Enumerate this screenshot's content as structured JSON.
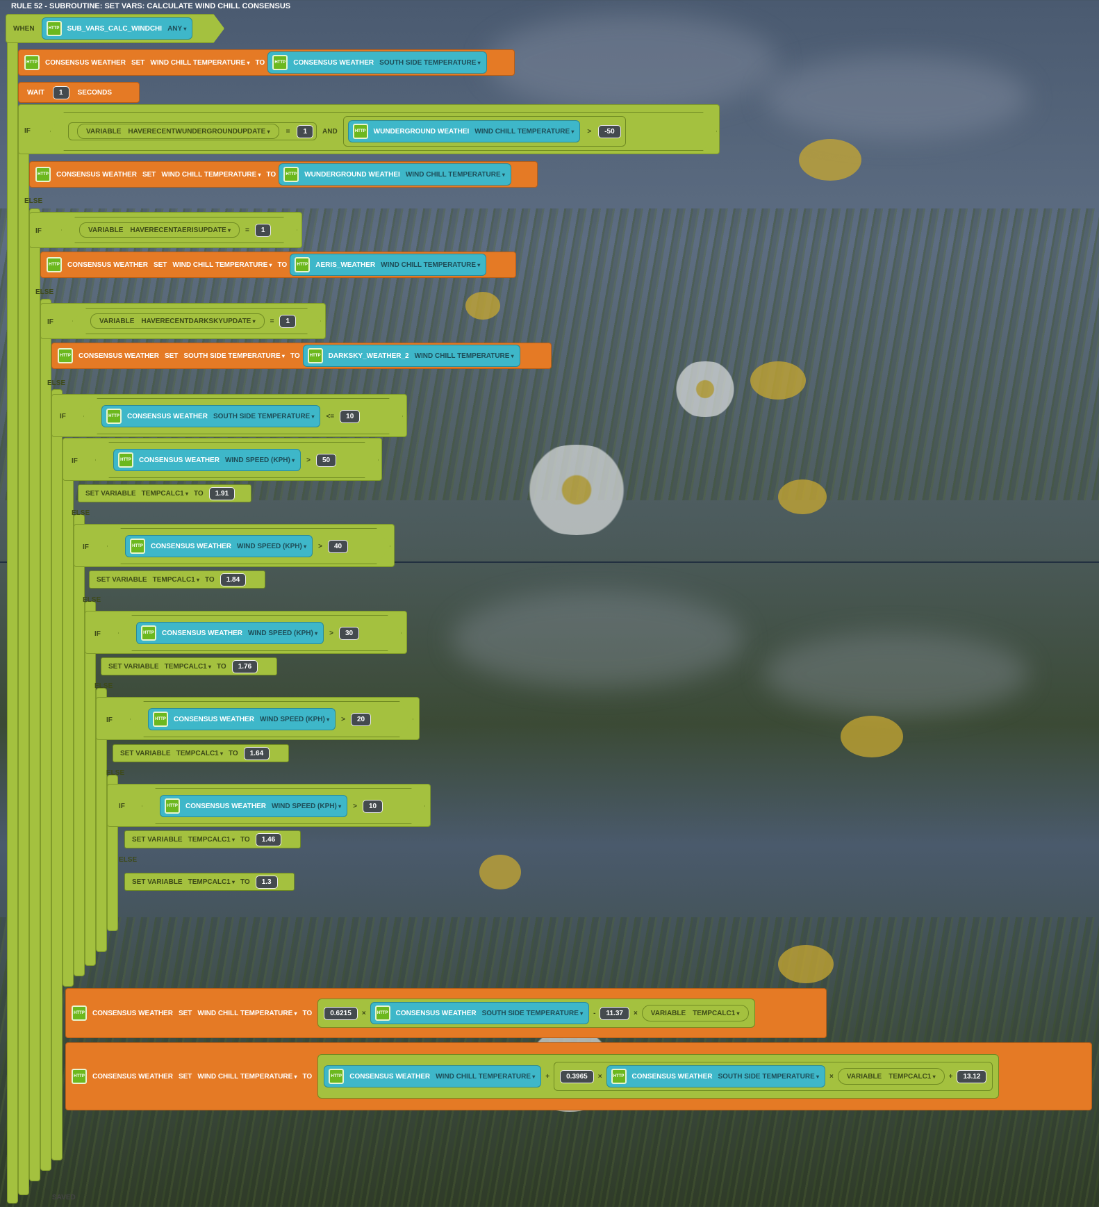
{
  "title": "RULE 52 - SUBROUTINE: SET VARS: CALCULATE WIND CHILL CONSENSUS",
  "status": "SAVED",
  "keywords": {
    "when": "WHEN",
    "if": "IF",
    "else": "ELSE",
    "set": "SET",
    "to": "TO",
    "and": "AND",
    "variable": "VARIABLE",
    "set_variable": "SET VARIABLE",
    "wait": "WAIT",
    "seconds": "SECONDS",
    "any": "ANY"
  },
  "trigger": {
    "device": "SUB_VARS_CALC_WINDCHI",
    "mode": "ANY"
  },
  "devices": {
    "consensus": "CONSENSUS WEATHER",
    "wunderground": "WUNDERGROUND WEATHEI",
    "aeris": "AERIS_WEATHER",
    "darksky": "DARKSKY_WEATHER_2"
  },
  "props": {
    "wind_chill": "WIND CHILL TEMPERATURE",
    "south": "SOUTH SIDE TEMPERATURE",
    "wind_speed": "WIND SPEED (KPH)"
  },
  "vars": {
    "wund": "HAVERECENTWUNDERGROUNDUPDATE",
    "aeris": "HAVERECENTAERISUPDATE",
    "darksky": "HAVERECENTDARKSKYUPDATE",
    "tempcalc": "TEMPCALC1"
  },
  "wait": {
    "value": "1"
  },
  "ops": {
    "eq": "=",
    "gt": ">",
    "le": "<=",
    "plus": "+",
    "minus": "-",
    "times": "×"
  },
  "values": {
    "one": "1",
    "neg50": "-50",
    "ten": "10",
    "fifty": "50",
    "forty": "40",
    "thirty": "30",
    "twenty": "20",
    "ten2": "10"
  },
  "tempcalc_values": {
    "v1": "1.91",
    "v2": "1.84",
    "v3": "1.76",
    "v4": "1.64",
    "v5": "1.46",
    "v6": "1.3"
  },
  "formula": {
    "c1": "0.6215",
    "c2": "11.37",
    "c3": "0.3965",
    "c4": "13.12"
  },
  "icon_label": "HTTP"
}
